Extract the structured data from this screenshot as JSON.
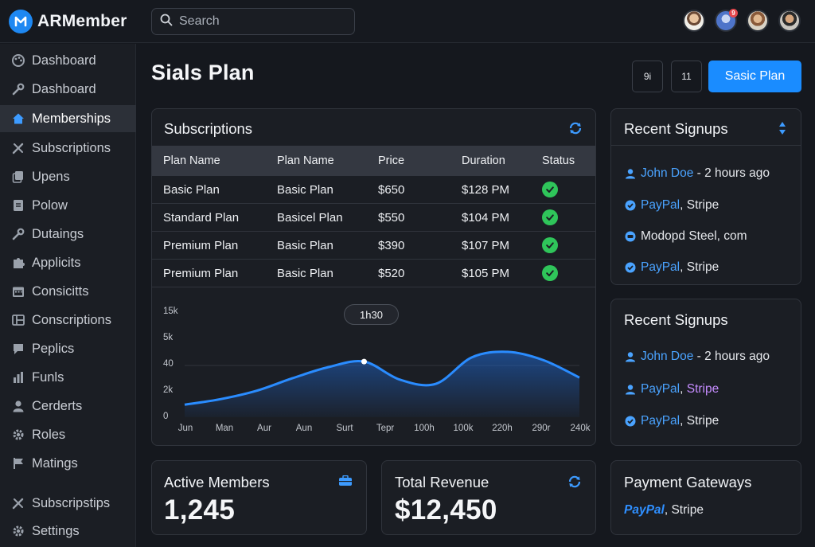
{
  "app": {
    "name": "ARMember"
  },
  "search": {
    "placeholder": "Search"
  },
  "header": {
    "notification_count": "9"
  },
  "sidebar": {
    "items": [
      {
        "label": "Dashboard",
        "icon": "palette-icon"
      },
      {
        "label": "Dashboard",
        "icon": "wrench-icon"
      },
      {
        "label": "Memberships",
        "icon": "home-icon",
        "active": true
      },
      {
        "label": "Subscriptions",
        "icon": "tools-icon"
      },
      {
        "label": "Upens",
        "icon": "copy-icon"
      },
      {
        "label": "Polow",
        "icon": "document-icon"
      },
      {
        "label": "Dutaings",
        "icon": "wrench-icon"
      },
      {
        "label": "Applicits",
        "icon": "puzzle-icon"
      },
      {
        "label": "Consicitts",
        "icon": "calendar-icon"
      },
      {
        "label": "Conscriptions",
        "icon": "layout-icon"
      },
      {
        "label": "Peplics",
        "icon": "comment-icon"
      },
      {
        "label": "Funls",
        "icon": "chart-icon"
      },
      {
        "label": "Cerderts",
        "icon": "user-icon"
      },
      {
        "label": "Roles",
        "icon": "gear-icon"
      },
      {
        "label": "Matings",
        "icon": "flag-icon"
      },
      {
        "label": "Subscripstips",
        "icon": "tools-icon"
      },
      {
        "label": "Settings",
        "icon": "gear-icon"
      }
    ]
  },
  "page": {
    "title": "Sials Plan",
    "button_a": "9i",
    "button_b": "11",
    "primary_button": "Sasic Plan"
  },
  "subscriptions": {
    "title": "Subscriptions",
    "columns": [
      "Plan Name",
      "Plan Name",
      "Price",
      "Duration",
      "Status"
    ],
    "rows": [
      {
        "plan": "Basic Plan",
        "plan2": "Basic Plan",
        "price": "$650",
        "duration": "$128 PM",
        "status": "active"
      },
      {
        "plan": "Standard Plan",
        "plan2": "Basicel Plan",
        "price": "$550",
        "duration": "$104 PM",
        "status": "active"
      },
      {
        "plan": "Premium Plan",
        "plan2": "Basic Plan",
        "price": "$390",
        "duration": "$107 PM",
        "status": "active"
      },
      {
        "plan": "Premium Plan",
        "plan2": "Basic Plan",
        "price": "$520",
        "duration": "$105 PM",
        "status": "active"
      }
    ]
  },
  "chart_data": {
    "type": "area",
    "y_tick_labels": [
      "15k",
      "5k",
      "40",
      "2k",
      "0"
    ],
    "x_tick_labels": [
      "Jun",
      "Man",
      "Aur",
      "Aun",
      "Surt",
      "Tepr",
      "100h",
      "100k",
      "220h",
      "290r",
      "240k"
    ],
    "tooltip": "1h30",
    "tooltip_index": 5,
    "ylim": [
      0,
      15000
    ],
    "series": [
      {
        "x": [
          0,
          1,
          2,
          3,
          4,
          5,
          6,
          7,
          8,
          9,
          10,
          11
        ],
        "values": [
          1800,
          2600,
          3800,
          5600,
          7200,
          8000,
          5400,
          4800,
          8600,
          9400,
          8200,
          5700
        ]
      }
    ]
  },
  "signups1": {
    "title": "Recent Signups",
    "name": "John Doe",
    "time": " - 2 hours ago",
    "line2_a": "PayPal",
    "line2_b": ", Stripe",
    "line3": "Modopd Steel, com",
    "line4_a": "PayPal",
    "line4_b": ", Stripe"
  },
  "signups2": {
    "title": "Recent Signups",
    "name": "John Doe",
    "time": " - 2 hours ago",
    "line2_a": "PayPal",
    "line2_sep": ", ",
    "line2_b": "Stripe",
    "line3_a": "PayPal",
    "line3_b": ", Stripe"
  },
  "stats": {
    "members_title": "Active Members",
    "members_value": "1,245",
    "revenue_title": "Total Revenue",
    "revenue_value": "$12,450",
    "gateways_title": "Payment Gateways",
    "gateways_a": "PayPal",
    "gateways_b": ", Stripe"
  },
  "colors": {
    "accent": "#1a8cff",
    "success": "#2fc55a",
    "background": "#15181e",
    "card": "#1b1e24"
  }
}
